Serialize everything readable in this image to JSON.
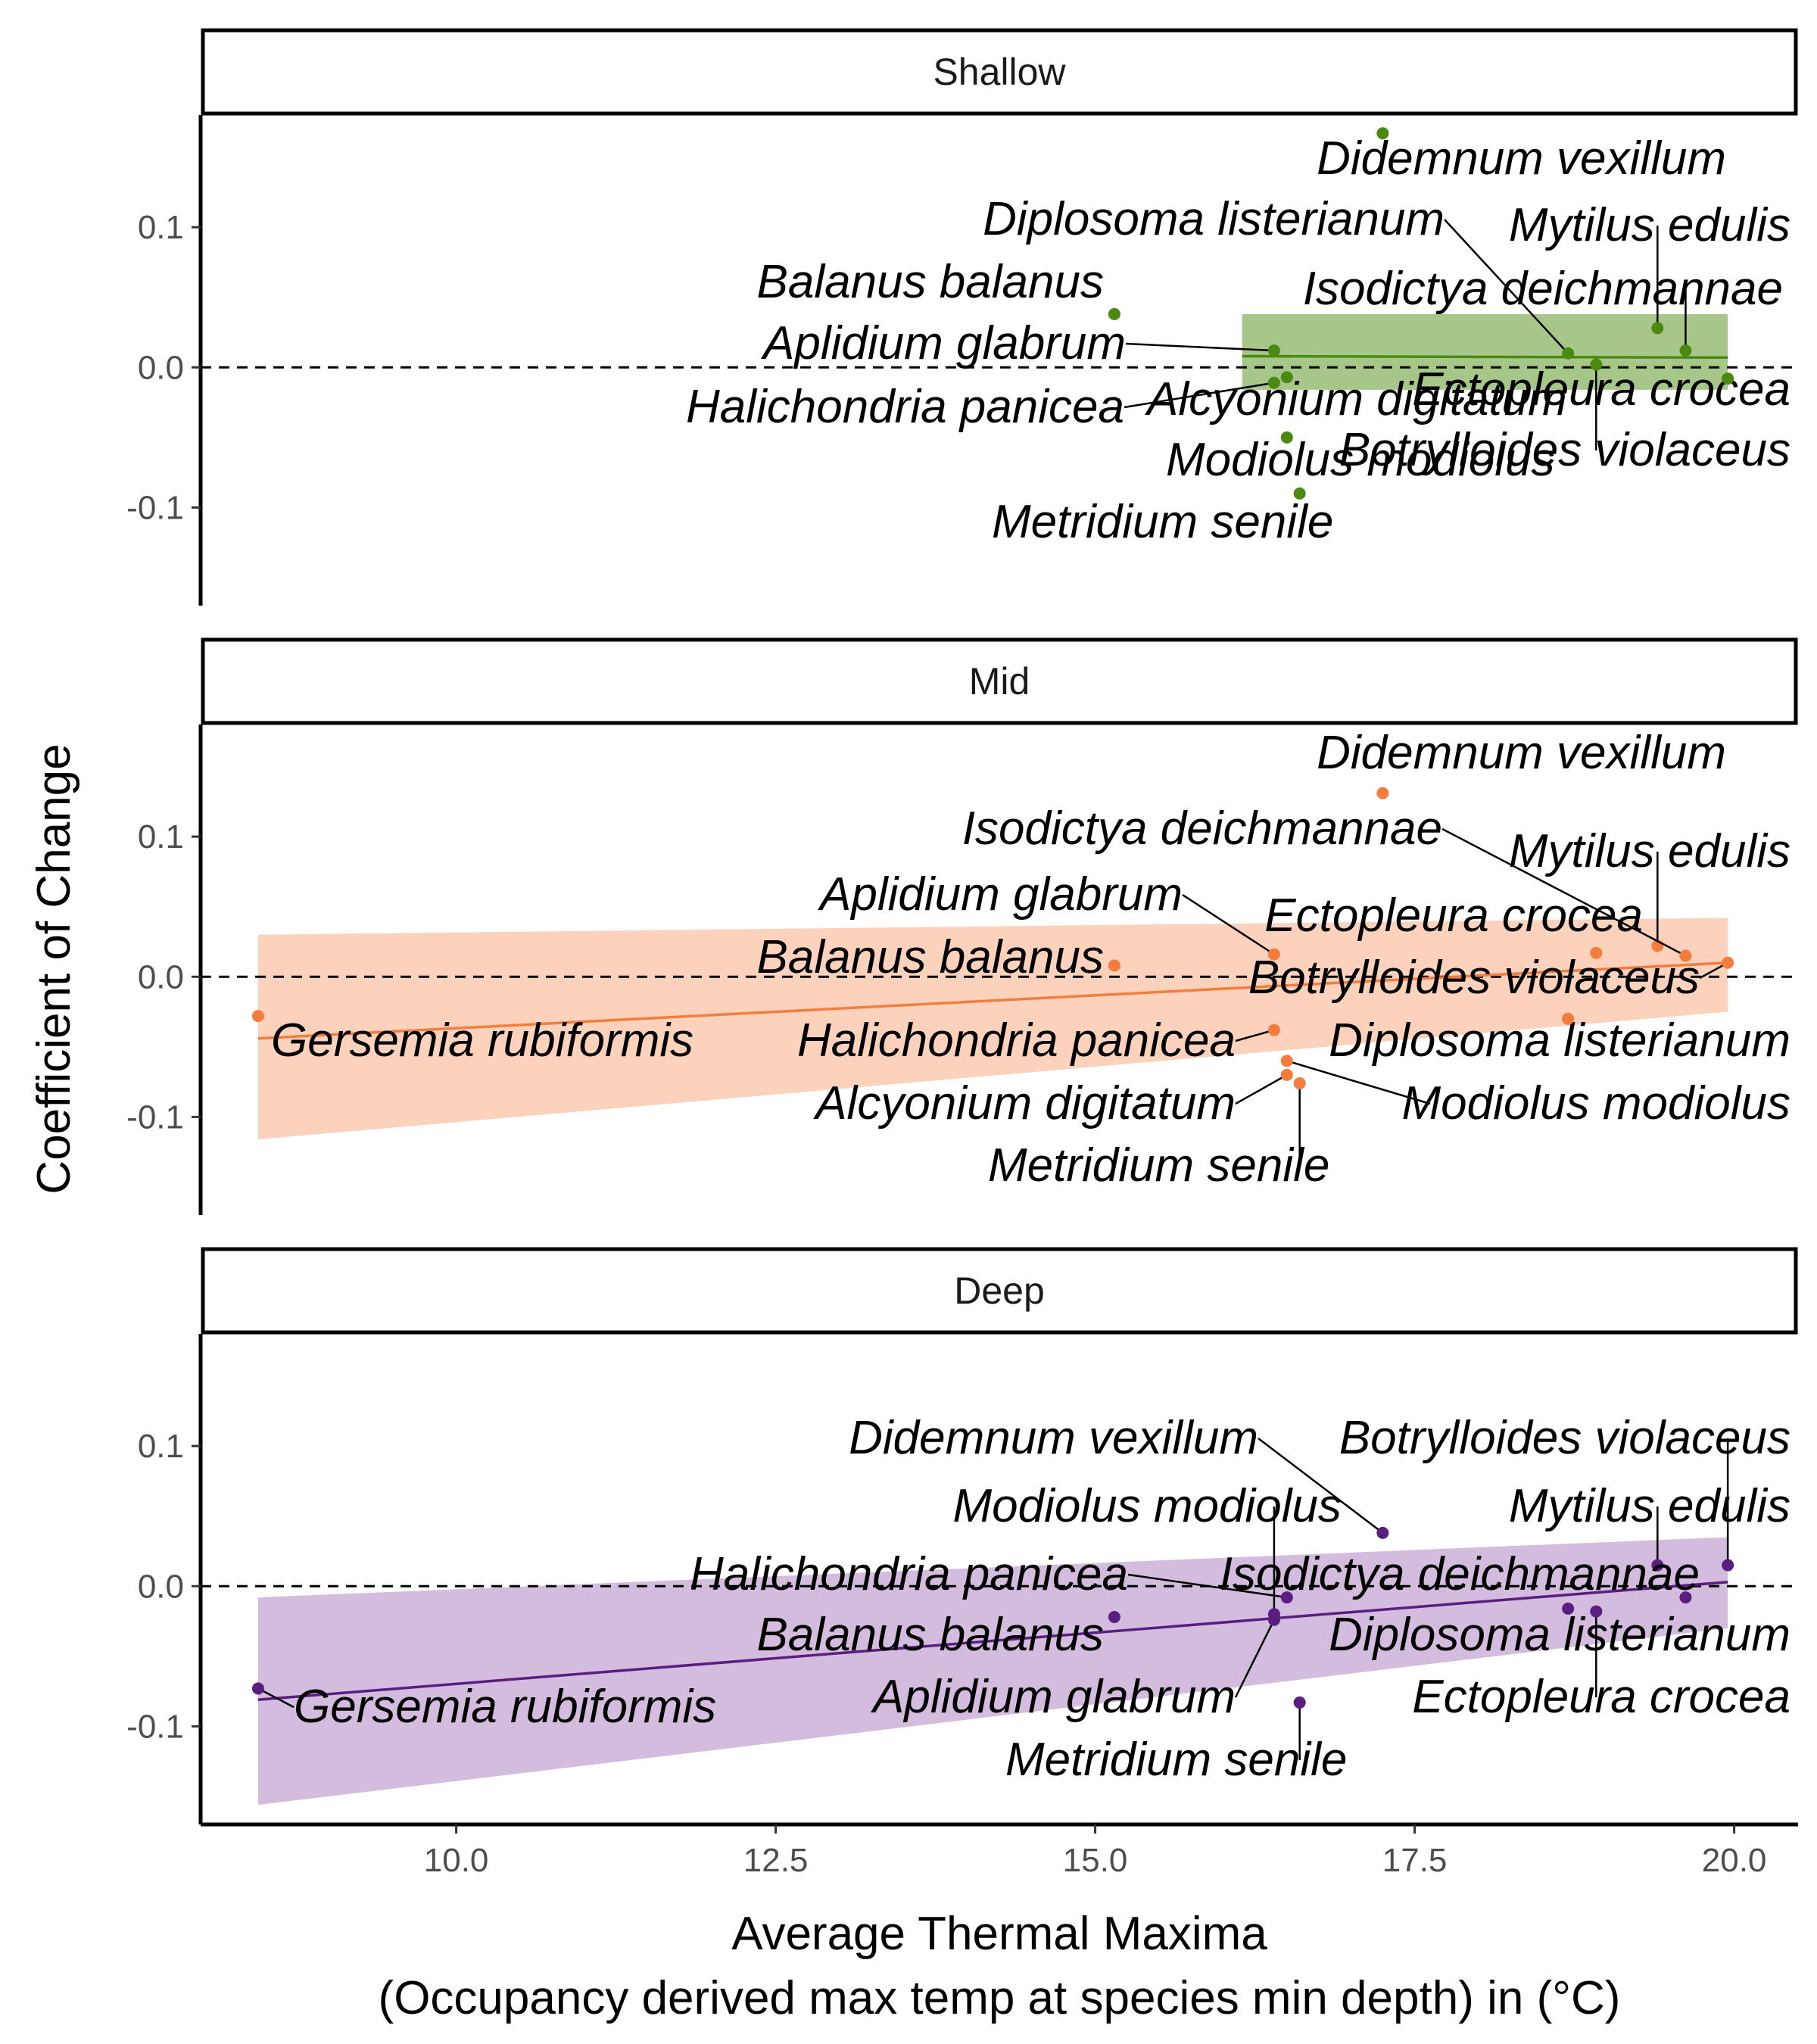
{
  "chart_data": {
    "type": "scatter",
    "xlabel": "Average Thermal Maxima",
    "xlabel_line2": "(Occupancy derived max temp at species min depth) in (°C)",
    "ylabel": "Coefficient of Change",
    "xlim": [
      8.0,
      20.5
    ],
    "ylim": [
      -0.17,
      0.18
    ],
    "x_ticks": [
      10.0,
      12.5,
      15.0,
      17.5,
      20.0
    ],
    "x_tick_labels": [
      "10.0",
      "12.5",
      "15.0",
      "17.5",
      "20.0"
    ],
    "y_ticks": [
      0.1,
      0.0,
      -0.1
    ],
    "y_tick_labels": [
      "0.1",
      "0.0",
      "-0.1"
    ],
    "reference_line": 0.0,
    "panels": [
      {
        "name": "Shallow",
        "color": "#4a8a10",
        "ribbon_color": "#6aa23a",
        "trend": {
          "x": [
            16.15,
            19.95
          ],
          "y": [
            0.008,
            0.007
          ]
        },
        "ribbon": {
          "x": [
            16.15,
            19.95
          ],
          "upper": [
            0.038,
            0.038
          ],
          "lower": [
            -0.016,
            -0.016
          ]
        },
        "points": [
          {
            "species": "Didemnum vexillum",
            "x": 17.25,
            "y": 0.167
          },
          {
            "species": "Mytilus edulis",
            "x": 19.4,
            "y": 0.028
          },
          {
            "species": "Balanus balanus",
            "x": 15.15,
            "y": 0.038
          },
          {
            "species": "Diplosoma listerianum",
            "x": 18.7,
            "y": 0.01
          },
          {
            "species": "Isodictya deichmannae",
            "x": 19.62,
            "y": 0.012
          },
          {
            "species": "Aplidium glabrum",
            "x": 16.4,
            "y": 0.012
          },
          {
            "species": "Ectopleura crocea",
            "x": 19.95,
            "y": -0.008
          },
          {
            "species": "Botrylloides violaceus",
            "x": 18.92,
            "y": 0.002
          },
          {
            "species": "Halichondria panicea",
            "x": 16.4,
            "y": -0.011
          },
          {
            "species": "Alcyonium digitatum",
            "x": 16.5,
            "y": -0.007
          },
          {
            "species": "Modiolus modiolus",
            "x": 16.5,
            "y": -0.05
          },
          {
            "species": "Metridium senile",
            "x": 16.6,
            "y": -0.09
          }
        ]
      },
      {
        "name": "Mid",
        "color": "#f47c3c",
        "ribbon_color": "#fbb490",
        "trend": {
          "x": [
            8.45,
            19.95
          ],
          "y": [
            -0.044,
            0.01
          ]
        },
        "ribbon": {
          "x": [
            8.45,
            19.95
          ],
          "upper": [
            0.03,
            0.042
          ],
          "lower": [
            -0.116,
            -0.025
          ]
        },
        "points": [
          {
            "species": "Didemnum vexillum",
            "x": 17.25,
            "y": 0.131
          },
          {
            "species": "Mytilus edulis",
            "x": 19.4,
            "y": 0.022
          },
          {
            "species": "Isodictya deichmannae",
            "x": 19.62,
            "y": 0.015
          },
          {
            "species": "Aplidium glabrum",
            "x": 16.4,
            "y": 0.016
          },
          {
            "species": "Ectopleura crocea",
            "x": 18.92,
            "y": 0.017
          },
          {
            "species": "Botrylloides violaceus",
            "x": 19.95,
            "y": 0.01
          },
          {
            "species": "Balanus balanus",
            "x": 15.15,
            "y": 0.008
          },
          {
            "species": "Gersemia rubiformis",
            "x": 8.45,
            "y": -0.028
          },
          {
            "species": "Diplosoma listerianum",
            "x": 18.7,
            "y": -0.03
          },
          {
            "species": "Halichondria panicea",
            "x": 16.4,
            "y": -0.038
          },
          {
            "species": "Modiolus modiolus",
            "x": 16.5,
            "y": -0.06
          },
          {
            "species": "Alcyonium digitatum",
            "x": 16.5,
            "y": -0.07
          },
          {
            "species": "Metridium senile",
            "x": 16.6,
            "y": -0.076
          }
        ]
      },
      {
        "name": "Deep",
        "color": "#5a1e82",
        "ribbon_color": "#b590c8",
        "trend": {
          "x": [
            8.45,
            19.95
          ],
          "y": [
            -0.081,
            0.003
          ]
        },
        "ribbon": {
          "x": [
            8.45,
            19.95
          ],
          "upper": [
            -0.008,
            0.035
          ],
          "lower": [
            -0.156,
            -0.03
          ]
        },
        "points": [
          {
            "species": "Didemnum vexillum",
            "x": 17.25,
            "y": 0.038
          },
          {
            "species": "Botrylloides violaceus",
            "x": 19.95,
            "y": 0.015
          },
          {
            "species": "Mytilus edulis",
            "x": 19.4,
            "y": 0.015
          },
          {
            "species": "Modiolus modiolus",
            "x": 16.4,
            "y": -0.02
          },
          {
            "species": "Isodictya deichmannae",
            "x": 19.62,
            "y": -0.008
          },
          {
            "species": "Halichondria panicea",
            "x": 16.5,
            "y": -0.008
          },
          {
            "species": "Balanus balanus",
            "x": 15.15,
            "y": -0.022
          },
          {
            "species": "Diplosoma listerianum",
            "x": 18.7,
            "y": -0.016
          },
          {
            "species": "Ectopleura crocea",
            "x": 18.92,
            "y": -0.018
          },
          {
            "species": "Aplidium glabrum",
            "x": 16.4,
            "y": -0.024
          },
          {
            "species": "Gersemia rubiformis",
            "x": 8.45,
            "y": -0.073
          },
          {
            "species": "Metridium senile",
            "x": 16.6,
            "y": -0.083
          }
        ]
      }
    ]
  }
}
